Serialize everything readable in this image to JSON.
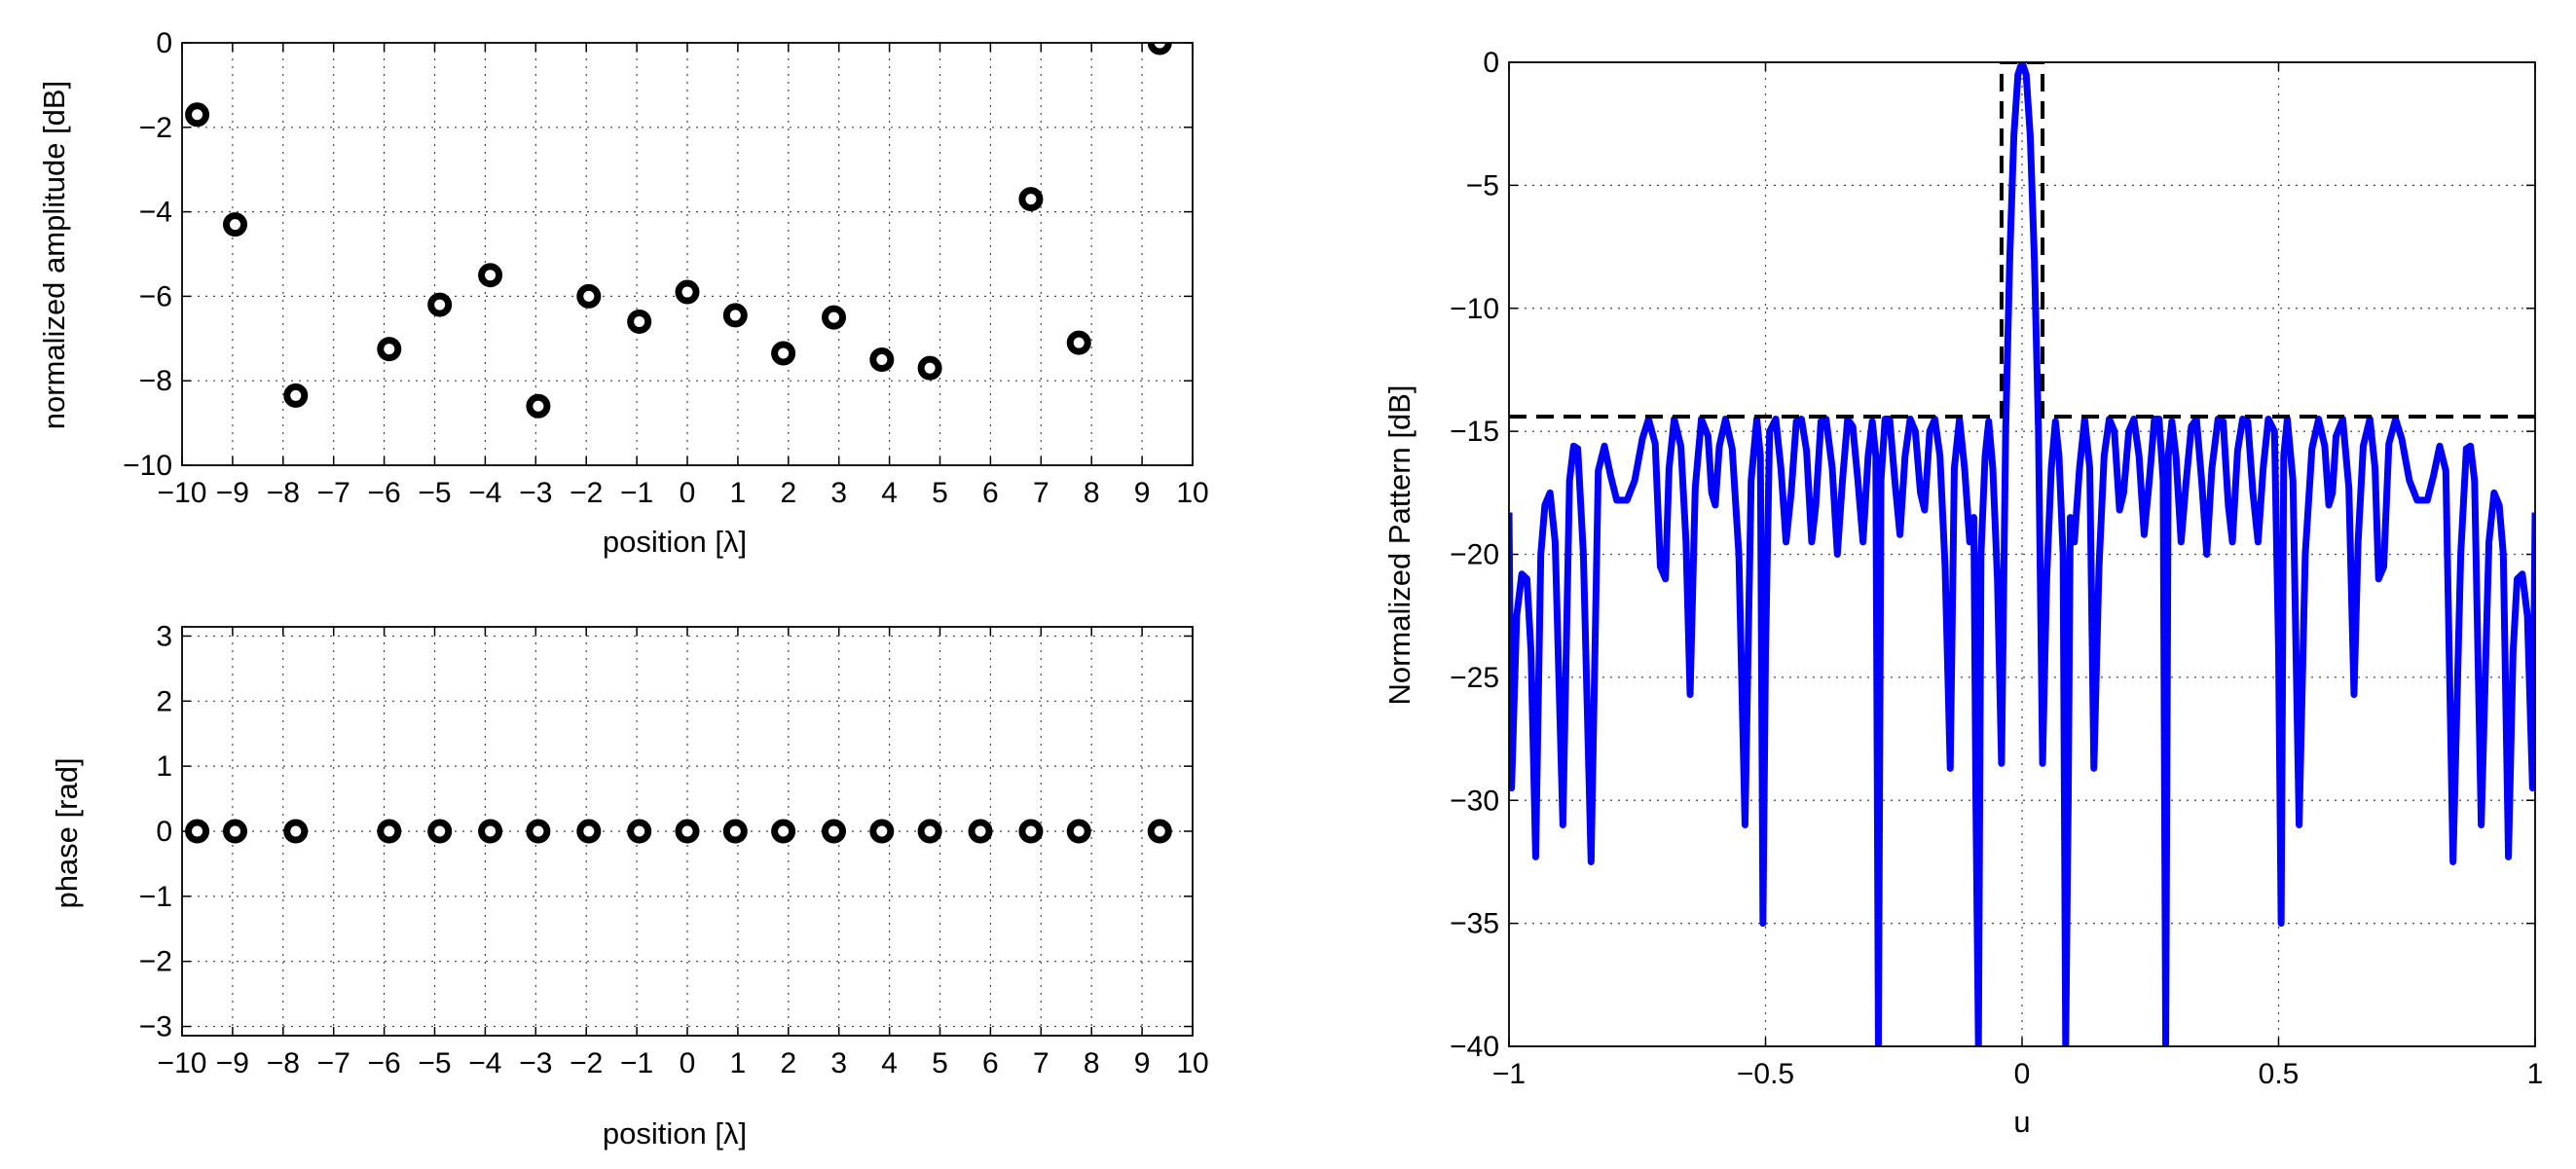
{
  "chart_data": [
    {
      "type": "scatter",
      "title": "",
      "xlabel": "position [λ]",
      "ylabel": "normalized amplitude [dB]",
      "xlim": [
        -10,
        10
      ],
      "ylim": [
        -10,
        0
      ],
      "xticks": [
        "−10",
        "−9",
        "−8",
        "−7",
        "−6",
        "−5",
        "−4",
        "−3",
        "−2",
        "−1",
        "0",
        "1",
        "2",
        "3",
        "4",
        "5",
        "6",
        "7",
        "8",
        "9",
        "10"
      ],
      "yticks": [
        "−10",
        "−8",
        "−6",
        "−4",
        "−2",
        "0"
      ],
      "grid": true,
      "marker": "ring",
      "x": [
        -9.7,
        -8.95,
        -7.75,
        -5.9,
        -4.9,
        -3.9,
        -2.95,
        -1.95,
        -0.95,
        0.0,
        0.95,
        1.9,
        2.9,
        3.85,
        4.8,
        6.8,
        7.75,
        9.35
      ],
      "y": [
        -1.7,
        -4.3,
        -8.35,
        -7.25,
        -6.2,
        -5.5,
        -8.6,
        -6.0,
        -6.6,
        -5.9,
        -6.45,
        -7.35,
        -6.5,
        -7.5,
        -7.7,
        -3.7,
        -7.1,
        0.0
      ]
    },
    {
      "type": "scatter",
      "title": "",
      "xlabel": "position [λ]",
      "ylabel": "phase [rad]",
      "xlim": [
        -10,
        10
      ],
      "ylim": [
        -3.14159,
        3.14159
      ],
      "xticks": [
        "−10",
        "−9",
        "−8",
        "−7",
        "−6",
        "−5",
        "−4",
        "−3",
        "−2",
        "−1",
        "0",
        "1",
        "2",
        "3",
        "4",
        "5",
        "6",
        "7",
        "8",
        "9",
        "10"
      ],
      "yticks": [
        "−3",
        "−2",
        "−1",
        "0",
        "1",
        "2",
        "3"
      ],
      "grid": true,
      "marker": "ring",
      "x": [
        -9.7,
        -8.95,
        -7.75,
        -5.9,
        -4.9,
        -3.9,
        -2.95,
        -1.95,
        -0.95,
        0.0,
        0.95,
        1.9,
        2.9,
        3.85,
        4.8,
        5.8,
        6.8,
        7.75,
        9.35
      ],
      "y": [
        0,
        0,
        0,
        0,
        0,
        0,
        0,
        0,
        0,
        0,
        0,
        0,
        0,
        0,
        0,
        0,
        0,
        0,
        0
      ]
    },
    {
      "type": "line",
      "title": "",
      "xlabel": "u",
      "ylabel": "Normalized Pattern [dB]",
      "xlim": [
        -1,
        1
      ],
      "ylim": [
        -40,
        0
      ],
      "xticks": [
        "−1",
        "−0.5",
        "0",
        "0.5",
        "1"
      ],
      "yticks": [
        "−40",
        "−35",
        "−30",
        "−25",
        "−20",
        "−15",
        "−10",
        "−5",
        "0"
      ],
      "grid": true,
      "series": [
        {
          "style": "solid",
          "color": "#0000ff",
          "points": [
            [
              -1.0,
              -18.3
            ],
            [
              -0.995,
              -29.5
            ],
            [
              -0.985,
              -22.5
            ],
            [
              -0.975,
              -20.8
            ],
            [
              -0.965,
              -21.0
            ],
            [
              -0.957,
              -24.0
            ],
            [
              -0.948,
              -32.3
            ],
            [
              -0.938,
              -20.0
            ],
            [
              -0.93,
              -18.0
            ],
            [
              -0.92,
              -17.5
            ],
            [
              -0.91,
              -19.5
            ],
            [
              -0.895,
              -31.0
            ],
            [
              -0.882,
              -17.0
            ],
            [
              -0.874,
              -15.6
            ],
            [
              -0.866,
              -15.7
            ],
            [
              -0.855,
              -20.0
            ],
            [
              -0.84,
              -32.5
            ],
            [
              -0.826,
              -16.6
            ],
            [
              -0.814,
              -15.6
            ],
            [
              -0.802,
              -16.8
            ],
            [
              -0.79,
              -17.8
            ],
            [
              -0.77,
              -17.8
            ],
            [
              -0.755,
              -17.0
            ],
            [
              -0.74,
              -15.3
            ],
            [
              -0.728,
              -14.5
            ],
            [
              -0.715,
              -15.5
            ],
            [
              -0.705,
              -20.5
            ],
            [
              -0.695,
              -21.0
            ],
            [
              -0.688,
              -16.5
            ],
            [
              -0.678,
              -14.5
            ],
            [
              -0.665,
              -15.6
            ],
            [
              -0.655,
              -19.5
            ],
            [
              -0.647,
              -25.7
            ],
            [
              -0.637,
              -17.3
            ],
            [
              -0.625,
              -14.5
            ],
            [
              -0.612,
              -15.2
            ],
            [
              -0.605,
              -17.5
            ],
            [
              -0.598,
              -18.0
            ],
            [
              -0.59,
              -15.6
            ],
            [
              -0.578,
              -14.5
            ],
            [
              -0.565,
              -15.7
            ],
            [
              -0.552,
              -20.0
            ],
            [
              -0.54,
              -31.0
            ],
            [
              -0.528,
              -17.0
            ],
            [
              -0.517,
              -14.5
            ],
            [
              -0.51,
              -16.0
            ],
            [
              -0.505,
              -35.0
            ],
            [
              -0.5,
              -24.0
            ],
            [
              -0.492,
              -15.0
            ],
            [
              -0.48,
              -14.5
            ],
            [
              -0.47,
              -16.5
            ],
            [
              -0.46,
              -19.5
            ],
            [
              -0.45,
              -17.5
            ],
            [
              -0.44,
              -14.6
            ],
            [
              -0.43,
              -14.5
            ],
            [
              -0.42,
              -15.8
            ],
            [
              -0.41,
              -19.5
            ],
            [
              -0.402,
              -18.0
            ],
            [
              -0.392,
              -14.6
            ],
            [
              -0.382,
              -14.5
            ],
            [
              -0.37,
              -16.5
            ],
            [
              -0.36,
              -20.0
            ],
            [
              -0.35,
              -17.0
            ],
            [
              -0.34,
              -14.5
            ],
            [
              -0.33,
              -14.8
            ],
            [
              -0.32,
              -17.0
            ],
            [
              -0.31,
              -19.5
            ],
            [
              -0.3,
              -16.0
            ],
            [
              -0.292,
              -14.6
            ],
            [
              -0.285,
              -16.0
            ],
            [
              -0.28,
              -40.0
            ],
            [
              -0.275,
              -17.0
            ],
            [
              -0.267,
              -14.5
            ],
            [
              -0.258,
              -14.5
            ],
            [
              -0.248,
              -17.0
            ],
            [
              -0.238,
              -19.2
            ],
            [
              -0.228,
              -16.0
            ],
            [
              -0.218,
              -14.5
            ],
            [
              -0.208,
              -15.0
            ],
            [
              -0.198,
              -17.5
            ],
            [
              -0.19,
              -18.2
            ],
            [
              -0.18,
              -15.0
            ],
            [
              -0.17,
              -14.5
            ],
            [
              -0.16,
              -16.0
            ],
            [
              -0.15,
              -20.5
            ],
            [
              -0.14,
              -28.7
            ],
            [
              -0.132,
              -16.5
            ],
            [
              -0.122,
              -14.5
            ],
            [
              -0.112,
              -16.5
            ],
            [
              -0.102,
              -19.5
            ],
            [
              -0.094,
              -18.5
            ],
            [
              -0.09,
              -30.0
            ],
            [
              -0.085,
              -40.0
            ],
            [
              -0.08,
              -20.0
            ],
            [
              -0.072,
              -16.0
            ],
            [
              -0.065,
              -14.6
            ],
            [
              -0.057,
              -16.5
            ],
            [
              -0.048,
              -21.0
            ],
            [
              -0.04,
              -28.5
            ],
            [
              -0.032,
              -15.0
            ],
            [
              -0.024,
              -8.0
            ],
            [
              -0.016,
              -3.0
            ],
            [
              -0.008,
              -0.5
            ],
            [
              0.0,
              0.0
            ],
            [
              0.008,
              -0.5
            ],
            [
              0.016,
              -3.0
            ],
            [
              0.024,
              -8.0
            ],
            [
              0.032,
              -15.0
            ],
            [
              0.04,
              -28.5
            ],
            [
              0.048,
              -21.0
            ],
            [
              0.057,
              -16.5
            ],
            [
              0.065,
              -14.6
            ],
            [
              0.072,
              -16.0
            ],
            [
              0.08,
              -20.0
            ],
            [
              0.085,
              -40.0
            ],
            [
              0.09,
              -30.0
            ],
            [
              0.094,
              -18.5
            ],
            [
              0.102,
              -19.5
            ],
            [
              0.112,
              -16.5
            ],
            [
              0.122,
              -14.5
            ],
            [
              0.132,
              -16.5
            ],
            [
              0.14,
              -28.7
            ],
            [
              0.15,
              -20.5
            ],
            [
              0.16,
              -16.0
            ],
            [
              0.17,
              -14.5
            ],
            [
              0.18,
              -15.0
            ],
            [
              0.19,
              -18.2
            ],
            [
              0.198,
              -17.5
            ],
            [
              0.208,
              -15.0
            ],
            [
              0.218,
              -14.5
            ],
            [
              0.228,
              -16.0
            ],
            [
              0.238,
              -19.2
            ],
            [
              0.248,
              -17.0
            ],
            [
              0.258,
              -14.5
            ],
            [
              0.267,
              -14.5
            ],
            [
              0.275,
              -17.0
            ],
            [
              0.28,
              -40.0
            ],
            [
              0.285,
              -16.0
            ],
            [
              0.292,
              -14.6
            ],
            [
              0.3,
              -16.0
            ],
            [
              0.31,
              -19.5
            ],
            [
              0.32,
              -17.0
            ],
            [
              0.33,
              -14.8
            ],
            [
              0.34,
              -14.5
            ],
            [
              0.35,
              -17.0
            ],
            [
              0.36,
              -20.0
            ],
            [
              0.37,
              -16.5
            ],
            [
              0.382,
              -14.5
            ],
            [
              0.392,
              -14.6
            ],
            [
              0.402,
              -18.0
            ],
            [
              0.41,
              -19.5
            ],
            [
              0.42,
              -15.8
            ],
            [
              0.43,
              -14.5
            ],
            [
              0.44,
              -14.6
            ],
            [
              0.45,
              -17.5
            ],
            [
              0.46,
              -19.5
            ],
            [
              0.47,
              -16.5
            ],
            [
              0.48,
              -14.5
            ],
            [
              0.492,
              -15.0
            ],
            [
              0.5,
              -24.0
            ],
            [
              0.505,
              -35.0
            ],
            [
              0.51,
              -16.0
            ],
            [
              0.517,
              -14.5
            ],
            [
              0.528,
              -17.0
            ],
            [
              0.54,
              -31.0
            ],
            [
              0.552,
              -20.0
            ],
            [
              0.565,
              -15.7
            ],
            [
              0.578,
              -14.5
            ],
            [
              0.59,
              -15.6
            ],
            [
              0.598,
              -18.0
            ],
            [
              0.605,
              -17.5
            ],
            [
              0.612,
              -15.2
            ],
            [
              0.625,
              -14.5
            ],
            [
              0.637,
              -17.3
            ],
            [
              0.647,
              -25.7
            ],
            [
              0.655,
              -19.5
            ],
            [
              0.665,
              -15.6
            ],
            [
              0.678,
              -14.5
            ],
            [
              0.688,
              -16.5
            ],
            [
              0.695,
              -21.0
            ],
            [
              0.705,
              -20.5
            ],
            [
              0.715,
              -15.5
            ],
            [
              0.728,
              -14.5
            ],
            [
              0.74,
              -15.3
            ],
            [
              0.755,
              -17.0
            ],
            [
              0.77,
              -17.8
            ],
            [
              0.79,
              -17.8
            ],
            [
              0.802,
              -16.8
            ],
            [
              0.814,
              -15.6
            ],
            [
              0.826,
              -16.6
            ],
            [
              0.84,
              -32.5
            ],
            [
              0.855,
              -20.0
            ],
            [
              0.866,
              -15.7
            ],
            [
              0.874,
              -15.6
            ],
            [
              0.882,
              -17.0
            ],
            [
              0.895,
              -31.0
            ],
            [
              0.91,
              -19.5
            ],
            [
              0.92,
              -17.5
            ],
            [
              0.93,
              -18.0
            ],
            [
              0.938,
              -20.0
            ],
            [
              0.948,
              -32.3
            ],
            [
              0.957,
              -24.0
            ],
            [
              0.965,
              -21.0
            ],
            [
              0.975,
              -20.8
            ],
            [
              0.985,
              -22.5
            ],
            [
              0.995,
              -29.5
            ],
            [
              1.0,
              -18.3
            ]
          ]
        },
        {
          "style": "dashed",
          "color": "#000000",
          "points": [
            [
              -1.0,
              -14.4
            ],
            [
              -0.04,
              -14.4
            ],
            [
              -0.04,
              0.0
            ],
            [
              0.04,
              0.0
            ],
            [
              0.04,
              -14.4
            ],
            [
              1.0,
              -14.4
            ]
          ]
        }
      ]
    }
  ]
}
